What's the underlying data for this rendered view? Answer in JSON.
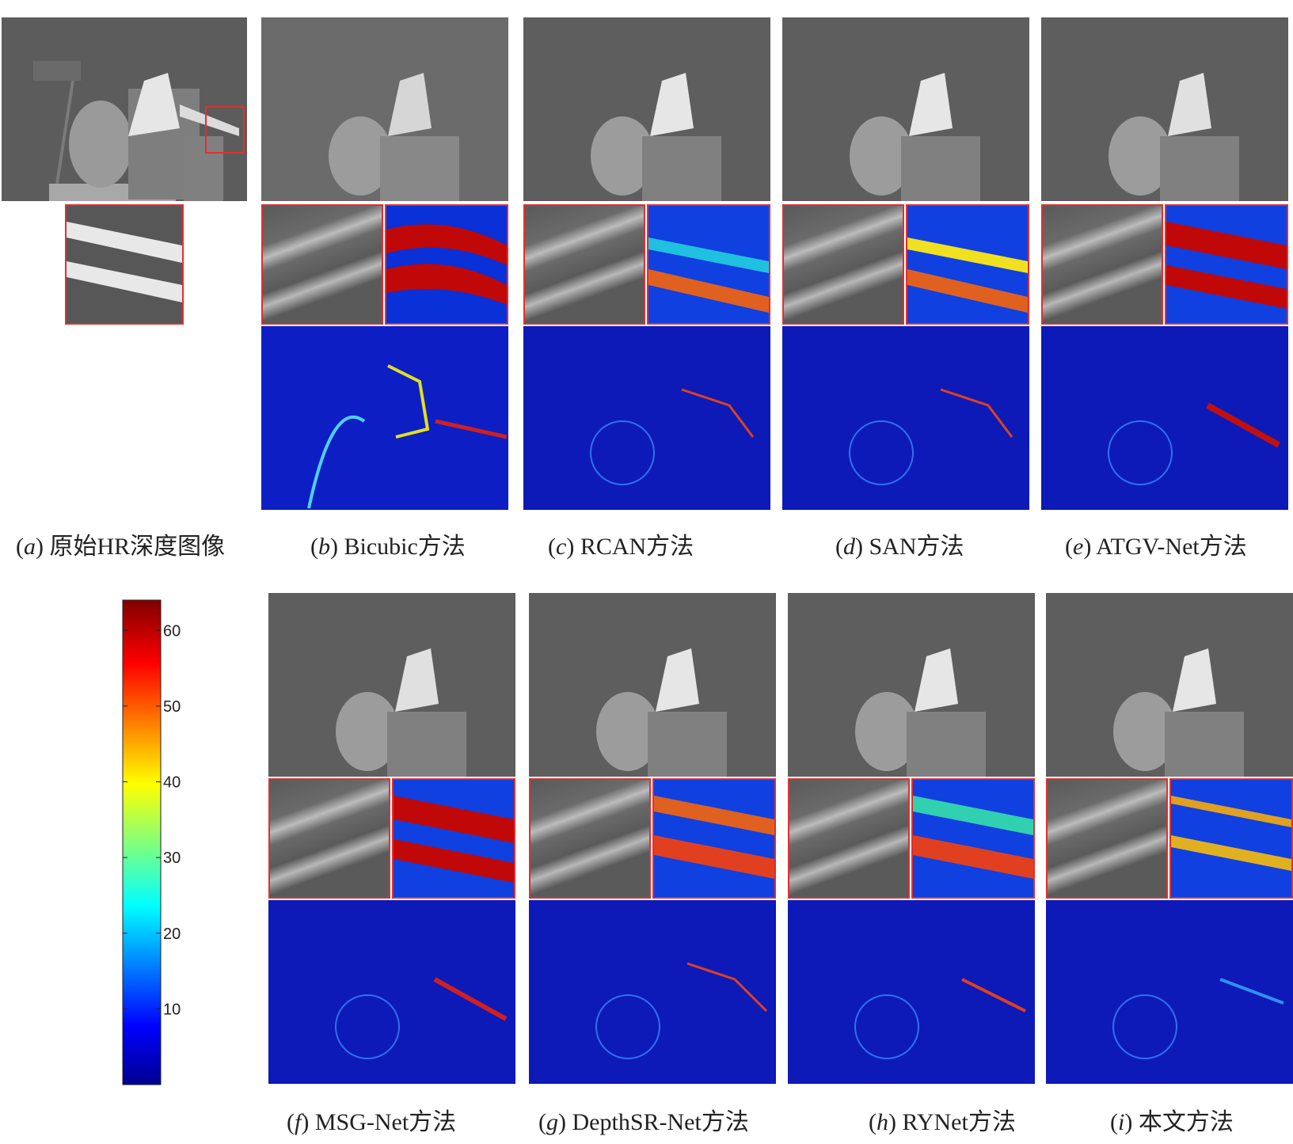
{
  "panels_top": [
    {
      "letter": "a",
      "label": "原始HR深度图像"
    },
    {
      "letter": "b",
      "label": "Bicubic方法"
    },
    {
      "letter": "c",
      "label": "RCAN方法"
    },
    {
      "letter": "d",
      "label": "SAN方法"
    },
    {
      "letter": "e",
      "label": "ATGV-Net方法"
    }
  ],
  "panels_bottom": [
    {
      "letter": "f",
      "label": "MSG-Net方法"
    },
    {
      "letter": "g",
      "label": "DepthSR-Net方法"
    },
    {
      "letter": "h",
      "label": "RYNet方法"
    },
    {
      "letter": "i",
      "label": "本文方法"
    }
  ],
  "colorbar": {
    "ticks": [
      "10",
      "20",
      "30",
      "40",
      "50",
      "60"
    ],
    "colormap": "jet",
    "range": [
      0,
      64
    ]
  },
  "colors": {
    "zoom_box": "#e03030",
    "depth_bg": "#585858",
    "error_bg": "#0a10b8"
  }
}
